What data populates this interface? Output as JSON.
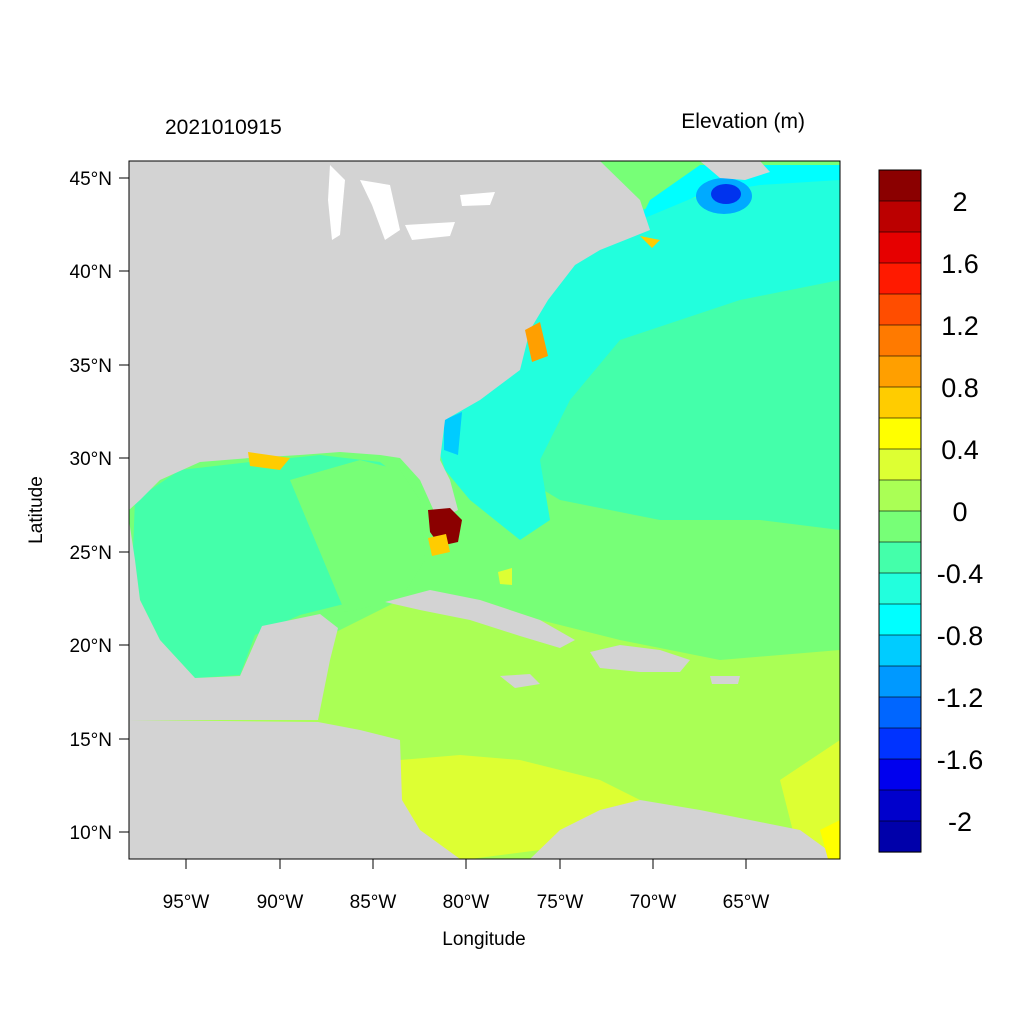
{
  "header": {
    "date_label": "2021010915",
    "variable_label": "Elevation (m)"
  },
  "axes": {
    "xlabel": "Longitude",
    "ylabel": "Latitude",
    "x_ticks": [
      "95°W",
      "90°W",
      "85°W",
      "80°W",
      "75°W",
      "70°W",
      "65°W"
    ],
    "y_ticks": [
      "45°N",
      "40°N",
      "35°N",
      "30°N",
      "25°N",
      "20°N",
      "15°N",
      "10°N"
    ],
    "lon_range": [
      -98,
      -60
    ],
    "lat_range": [
      8.5,
      46
    ]
  },
  "colorbar": {
    "labels": [
      "2",
      "1.6",
      "1.2",
      "0.8",
      "0.4",
      "0",
      "-0.4",
      "-0.8",
      "-1.2",
      "-1.6",
      "-2"
    ],
    "colors": [
      "#8b0000",
      "#bb0000",
      "#e60000",
      "#ff1a00",
      "#ff4d00",
      "#ff7a00",
      "#ff9f00",
      "#ffcc00",
      "#ffff00",
      "#ddff33",
      "#aaff55",
      "#77ff77",
      "#44ffaa",
      "#22ffdd",
      "#00ffff",
      "#00ccff",
      "#0099ff",
      "#0066ff",
      "#0033ff",
      "#0000ee",
      "#0000cc",
      "#0000aa"
    ]
  },
  "map": {
    "land_color": "#d3d3d3",
    "water_colors": {
      "deep_neg": "#22ffdd",
      "neg": "#44ffaa",
      "zero": "#77ff77",
      "pos_low": "#aaff55",
      "pos": "#ddff33",
      "high": "#8b0000",
      "low": "#0044ff"
    }
  }
}
